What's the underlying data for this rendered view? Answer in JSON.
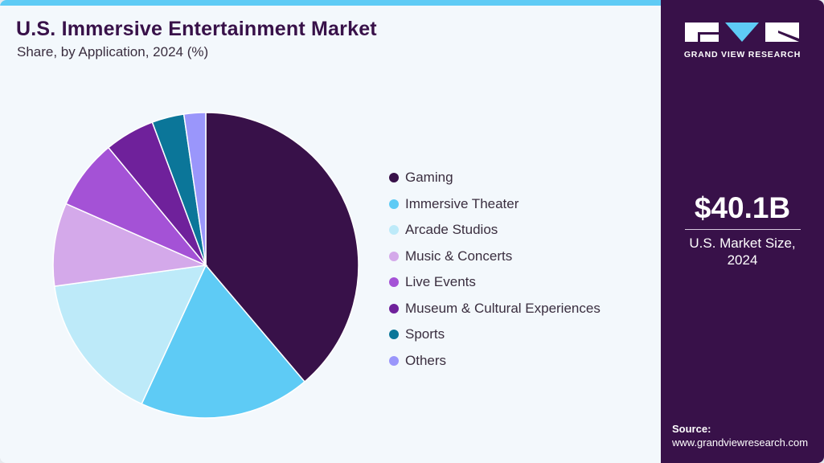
{
  "header": {
    "title": "U.S. Immersive Entertainment Market",
    "subtitle": "Share, by Application, 2024 (%)"
  },
  "brand": {
    "name": "GRAND VIEW RESEARCH",
    "colors": {
      "primary": "#381149",
      "accent": "#5ecbf5"
    }
  },
  "market": {
    "value": "$40.1B",
    "label_line1": "U.S. Market Size,",
    "label_line2": "2024"
  },
  "source": {
    "label": "Source:",
    "url": "www.grandviewresearch.com"
  },
  "chart_data": {
    "type": "pie",
    "title": "U.S. Immersive Entertainment Market",
    "subtitle": "Share, by Application, 2024 (%)",
    "categories": [
      "Gaming",
      "Immersive Theater",
      "Arcade Studios",
      "Music & Concerts",
      "Live Events",
      "Museum & Cultural Experiences",
      "Sports",
      "Others"
    ],
    "values": [
      38.8,
      18.1,
      15.9,
      8.8,
      7.4,
      5.3,
      3.4,
      2.3
    ],
    "colors": [
      "#381149",
      "#5ecbf5",
      "#bdeaf9",
      "#d4a9ea",
      "#a452d6",
      "#6f219b",
      "#0b7699",
      "#9a96fb"
    ],
    "legend_position": "right",
    "start_angle_deg": 0,
    "direction": "clockwise"
  }
}
